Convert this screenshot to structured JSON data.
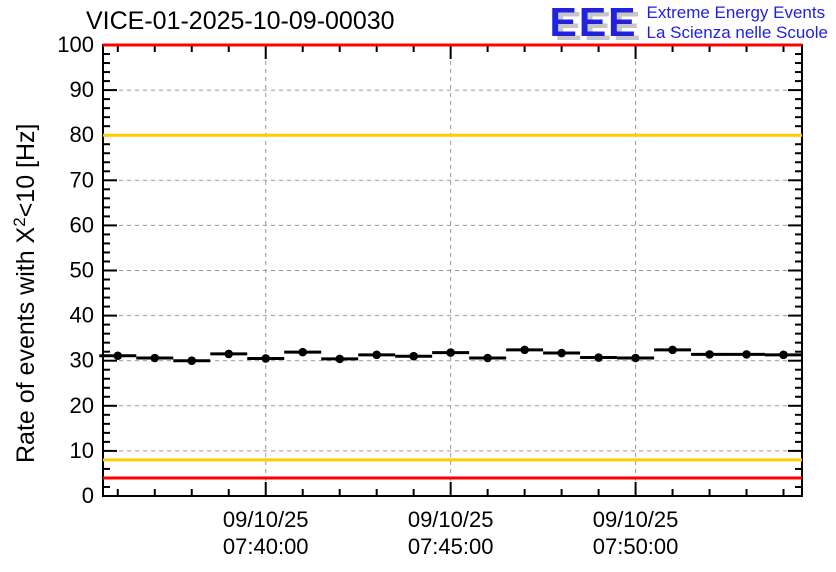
{
  "header": {
    "title": "VICE-01-2025-10-09-00030"
  },
  "logo": {
    "acronym": "EEE",
    "line1": "Extreme Energy Events",
    "line2": "La Scienza nelle Scuole",
    "blue": "#2222dd",
    "shadow_gray": "#c6c6c6"
  },
  "colors": {
    "alarm_red": "#ff0000",
    "warning_yellow": "#ffcc00",
    "grid_gray": "#999999",
    "marker_black": "#000000",
    "frame_black": "#000000"
  },
  "chart_data": {
    "type": "scatter",
    "title": "VICE-01-2025-10-09-00030",
    "ylabel": "Rate of events with X^2<10 [Hz]",
    "ylabel_parts": {
      "prefix": "Rate of events with X",
      "sup": "2",
      "suffix": "<10 [Hz]"
    },
    "xlabel": "",
    "ylim": [
      0,
      100
    ],
    "y_major_step": 10,
    "y_minor_step": 2,
    "grid": true,
    "x_axis_type": "time",
    "x_minutes_range": [
      35.6,
      54.5
    ],
    "x_minor_step_minutes": 1,
    "x_major_ticks": [
      {
        "minute": 40,
        "label_date": "09/10/25",
        "label_time": "07:40:00"
      },
      {
        "minute": 45,
        "label_date": "09/10/25",
        "label_time": "07:45:00"
      },
      {
        "minute": 50,
        "label_date": "09/10/25",
        "label_time": "07:50:00"
      }
    ],
    "thresholds": [
      {
        "value": 100,
        "color": "#ff0000",
        "kind": "alarm-high"
      },
      {
        "value": 80,
        "color": "#ffcc00",
        "kind": "warning-high"
      },
      {
        "value": 8,
        "color": "#ffcc00",
        "kind": "warning-low"
      },
      {
        "value": 4,
        "color": "#ff0000",
        "kind": "alarm-low"
      }
    ],
    "bin_half_width_minutes": 0.5,
    "series": [
      {
        "name": "rate",
        "marker": "filled-circle",
        "color": "#000000",
        "points": [
          {
            "time": "07:36:00",
            "minute": 36,
            "rate_hz": 31.1,
            "err_hz": 0.7
          },
          {
            "time": "07:37:00",
            "minute": 37,
            "rate_hz": 30.6,
            "err_hz": 0.7
          },
          {
            "time": "07:38:00",
            "minute": 38,
            "rate_hz": 30.0,
            "err_hz": 0.7
          },
          {
            "time": "07:39:00",
            "minute": 39,
            "rate_hz": 31.5,
            "err_hz": 0.7
          },
          {
            "time": "07:40:00",
            "minute": 40,
            "rate_hz": 30.5,
            "err_hz": 0.7
          },
          {
            "time": "07:41:00",
            "minute": 41,
            "rate_hz": 31.9,
            "err_hz": 0.7
          },
          {
            "time": "07:42:00",
            "minute": 42,
            "rate_hz": 30.4,
            "err_hz": 0.7
          },
          {
            "time": "07:43:00",
            "minute": 43,
            "rate_hz": 31.3,
            "err_hz": 0.7
          },
          {
            "time": "07:44:00",
            "minute": 44,
            "rate_hz": 31.0,
            "err_hz": 0.7
          },
          {
            "time": "07:45:00",
            "minute": 45,
            "rate_hz": 31.8,
            "err_hz": 0.7
          },
          {
            "time": "07:46:00",
            "minute": 46,
            "rate_hz": 30.6,
            "err_hz": 0.7
          },
          {
            "time": "07:47:00",
            "minute": 47,
            "rate_hz": 32.4,
            "err_hz": 0.7
          },
          {
            "time": "07:48:00",
            "minute": 48,
            "rate_hz": 31.7,
            "err_hz": 0.7
          },
          {
            "time": "07:49:00",
            "minute": 49,
            "rate_hz": 30.7,
            "err_hz": 0.7
          },
          {
            "time": "07:50:00",
            "minute": 50,
            "rate_hz": 30.6,
            "err_hz": 0.7
          },
          {
            "time": "07:51:00",
            "minute": 51,
            "rate_hz": 32.4,
            "err_hz": 0.7
          },
          {
            "time": "07:52:00",
            "minute": 52,
            "rate_hz": 31.4,
            "err_hz": 0.7
          },
          {
            "time": "07:53:00",
            "minute": 53,
            "rate_hz": 31.4,
            "err_hz": 0.7
          },
          {
            "time": "07:54:00",
            "minute": 54,
            "rate_hz": 31.3,
            "err_hz": 0.7
          }
        ]
      }
    ],
    "legend": null
  }
}
